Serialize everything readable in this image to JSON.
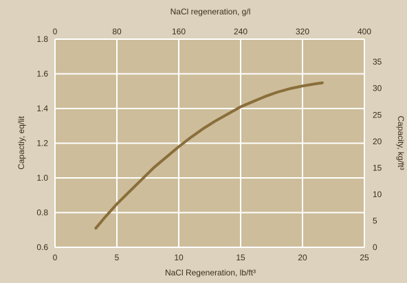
{
  "colors": {
    "background": "#dcd2bd",
    "plot_background": "#cdbd9b",
    "grid": "#ffffff",
    "curve": "#8a6e3b"
  },
  "chart_data": {
    "type": "line",
    "title": "",
    "grid": true,
    "legend": "none",
    "x_axis_bottom": {
      "label": "NaCl Regeneration, lb/ft³",
      "range": [
        0,
        25
      ],
      "ticks": [
        "0",
        "5",
        "10",
        "15",
        "20",
        "25"
      ]
    },
    "x_axis_top": {
      "label": "NaCl regeneration, g/l",
      "range": [
        0,
        400
      ],
      "ticks": [
        "0",
        "80",
        "160",
        "240",
        "320",
        "400"
      ]
    },
    "y_axis_left": {
      "label": "Capactiy, eq/lit",
      "range": [
        0.6,
        1.8
      ],
      "ticks": [
        "0.6",
        "0.8",
        "1.0",
        "1.2",
        "1.4",
        "1.6",
        "1.8"
      ]
    },
    "y_axis_right": {
      "label": "Capacity, kg/ft³",
      "range": [
        0,
        39.3
      ],
      "ticks": [
        "0",
        "5",
        "10",
        "15",
        "20",
        "25",
        "30",
        "35"
      ]
    },
    "series": [
      {
        "x": [
          3.3,
          4,
          5,
          6,
          7,
          8,
          9,
          10,
          11,
          12,
          13,
          14,
          15,
          16,
          17,
          18,
          19,
          20,
          21,
          21.6
        ],
        "y": [
          0.71,
          0.77,
          0.85,
          0.92,
          0.99,
          1.06,
          1.12,
          1.18,
          1.235,
          1.285,
          1.33,
          1.37,
          1.41,
          1.44,
          1.47,
          1.495,
          1.515,
          1.53,
          1.542,
          1.548
        ]
      }
    ]
  }
}
